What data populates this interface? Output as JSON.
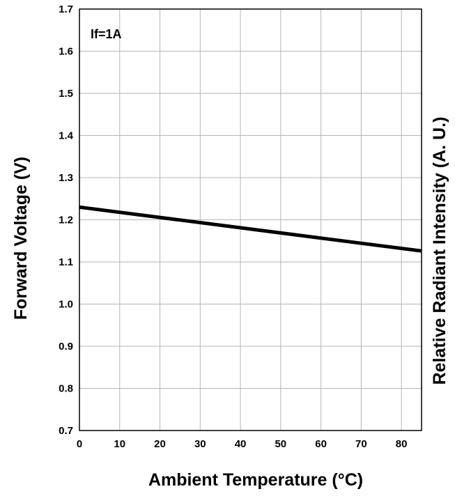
{
  "chart_data": {
    "type": "line",
    "xlabel": "Ambient Temperature (°C)",
    "ylabel": "Forward Voltage (V)",
    "y2label": "Relative Radiant Intensity (A. U.)",
    "annotation": "If=1A",
    "xlim": [
      0,
      85
    ],
    "ylim": [
      0.7,
      1.7
    ],
    "xticks": [
      0,
      10,
      20,
      30,
      40,
      50,
      60,
      70,
      80
    ],
    "xtick_labels": [
      "0",
      "10",
      "20",
      "30",
      "40",
      "50",
      "60",
      "70",
      "80"
    ],
    "yticks": [
      0.7,
      0.8,
      0.9,
      1.0,
      1.1,
      1.2,
      1.3,
      1.4,
      1.5,
      1.6,
      1.7
    ],
    "ytick_labels": [
      "0.7",
      "0.8",
      "0.9",
      "1.0",
      "1.1",
      "1.2",
      "1.3",
      "1.4",
      "1.5",
      "1.6",
      "1.7"
    ],
    "grid": true,
    "series": [
      {
        "color": "#000000",
        "x": [
          0,
          85
        ],
        "y": [
          1.23,
          1.126
        ]
      }
    ]
  }
}
